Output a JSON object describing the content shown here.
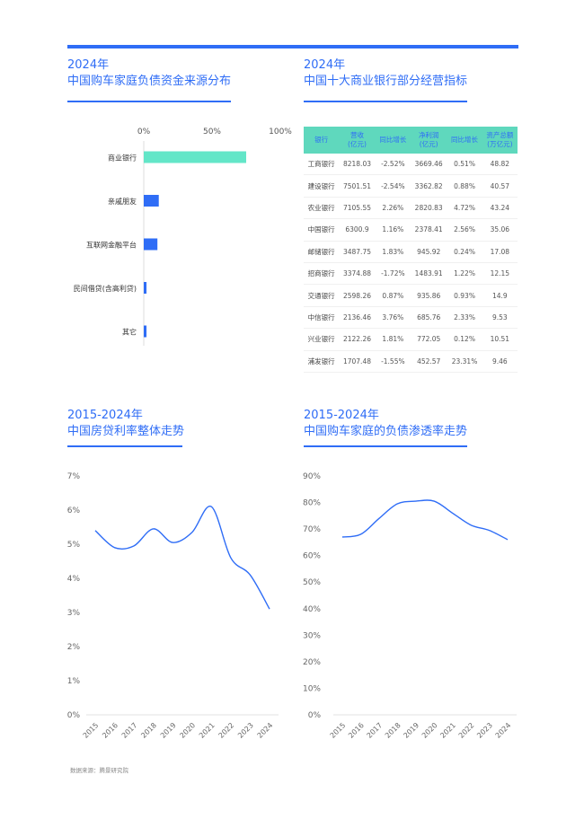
{
  "sections": {
    "funding": {
      "year": "2024年",
      "title": "中国购车家庭负债资金来源分布"
    },
    "banks": {
      "year": "2024年",
      "title": "中国十大商业银行部分经营指标"
    },
    "rate": {
      "year": "2015-2024年",
      "title": "中国房贷利率整体走势"
    },
    "debt": {
      "year": "2015-2024年",
      "title": "中国购车家庭的负债渗透率走势"
    }
  },
  "bank_table": {
    "headers": [
      "银行",
      "营收\n(亿元)",
      "同比增长",
      "净利润\n(亿元)",
      "同比增长",
      "资产总额\n(万亿元)"
    ],
    "rows": [
      [
        "工商银行",
        "8218.03",
        "-2.52%",
        "3669.46",
        "0.51%",
        "48.82"
      ],
      [
        "建设银行",
        "7501.51",
        "-2.54%",
        "3362.82",
        "0.88%",
        "40.57"
      ],
      [
        "农业银行",
        "7105.55",
        "2.26%",
        "2820.83",
        "4.72%",
        "43.24"
      ],
      [
        "中国银行",
        "6300.9",
        "1.16%",
        "2378.41",
        "2.56%",
        "35.06"
      ],
      [
        "邮储银行",
        "3487.75",
        "1.83%",
        "945.92",
        "0.24%",
        "17.08"
      ],
      [
        "招商银行",
        "3374.88",
        "-1.72%",
        "1483.91",
        "1.22%",
        "12.15"
      ],
      [
        "交通银行",
        "2598.26",
        "0.87%",
        "935.86",
        "0.93%",
        "14.9"
      ],
      [
        "中信银行",
        "2136.46",
        "3.76%",
        "685.76",
        "2.33%",
        "9.53"
      ],
      [
        "兴业银行",
        "2122.26",
        "1.81%",
        "772.05",
        "0.12%",
        "10.51"
      ],
      [
        "浦发银行",
        "1707.48",
        "-1.55%",
        "452.57",
        "23.31%",
        "9.46"
      ]
    ]
  },
  "chart_data": [
    {
      "type": "bar",
      "orientation": "horizontal",
      "categories": [
        "商业银行",
        "亲戚朋友",
        "互联网金融平台",
        "民间借贷(含高利贷)",
        "其它"
      ],
      "values": [
        75,
        11,
        10,
        2,
        2
      ],
      "xticks": [
        "0%",
        "50%",
        "100%"
      ],
      "xlim": [
        0,
        100
      ],
      "colors": [
        "#63e6c8",
        "#2f6df6",
        "#2f6df6",
        "#2f6df6",
        "#2f6df6"
      ],
      "xlabel": "",
      "ylabel": ""
    },
    {
      "type": "line",
      "x": [
        "2015",
        "2016",
        "2017",
        "2018",
        "2019",
        "2020",
        "2021",
        "2022",
        "2023",
        "2024"
      ],
      "values": [
        5.4,
        4.9,
        4.95,
        5.45,
        5.05,
        5.35,
        6.1,
        4.6,
        4.1,
        3.1
      ],
      "ylim": [
        0,
        7
      ],
      "yticks": [
        "0%",
        "1%",
        "2%",
        "3%",
        "4%",
        "5%",
        "6%",
        "7%"
      ],
      "color": "#2f6df6",
      "xlabel": "",
      "ylabel": ""
    },
    {
      "type": "line",
      "x": [
        "2015",
        "2016",
        "2017",
        "2018",
        "2019",
        "2020",
        "2021",
        "2022",
        "2023",
        "2024"
      ],
      "values": [
        67,
        68,
        74,
        79.5,
        80.5,
        80.5,
        76,
        71.5,
        69.5,
        66
      ],
      "ylim": [
        0,
        90
      ],
      "yticks": [
        "0%",
        "10%",
        "20%",
        "30%",
        "40%",
        "50%",
        "60%",
        "70%",
        "80%",
        "90%"
      ],
      "color": "#2f6df6",
      "xlabel": "",
      "ylabel": ""
    }
  ],
  "source": "数据来源：腾景研究院"
}
